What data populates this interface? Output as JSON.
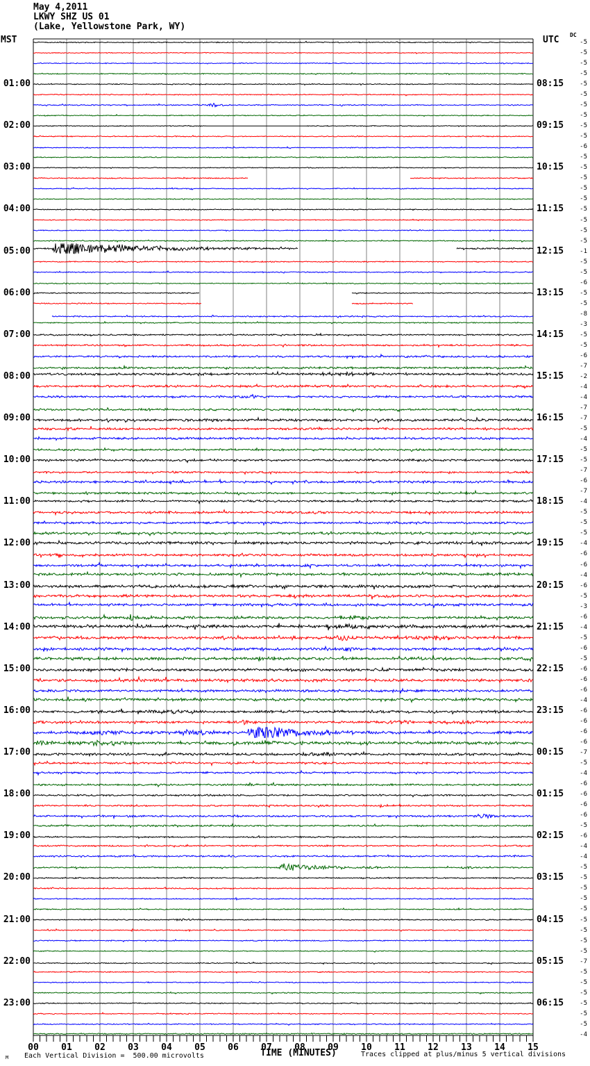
{
  "header": {
    "date": "May 4,2011",
    "station": "LKWY SHZ US 01",
    "location": "(Lake, Yellowstone Park, WY)"
  },
  "plot": {
    "left_tz": "MST",
    "right_tz": "UTC",
    "dc_label": "DC"
  },
  "axis": {
    "title": "TIME (MINUTES)"
  },
  "footer": {
    "left_note": "Each Vertical Division =  500.00 microvolts",
    "right_note": "Traces clipped at plus/minus 5 vertical divisions",
    "watermark": "M"
  },
  "chart_data": {
    "type": "line",
    "subtype": "helicorder-seismogram",
    "title": "LKWY SHZ US 01 webicorder record, May 4,2011 (Lake, Yellowstone Park, WY)",
    "x_axis": {
      "label": "TIME (MINUTES)",
      "min": 0,
      "max": 15,
      "minor_tick": 0.2,
      "tick_labels": [
        "00",
        "01",
        "02",
        "03",
        "04",
        "05",
        "06",
        "07",
        "08",
        "09",
        "10",
        "11",
        "12",
        "13",
        "14",
        "15"
      ]
    },
    "rows_per_hour": 4,
    "row_minutes": 15,
    "num_rows": 96,
    "trace_colors": [
      "#000000",
      "#ff0000",
      "#0000ff",
      "#006600"
    ],
    "grid_color": "#808080",
    "left_hour_labels": [
      "01:00",
      "02:00",
      "03:00",
      "04:00",
      "05:00",
      "06:00",
      "07:00",
      "08:00",
      "09:00",
      "10:00",
      "11:00",
      "12:00",
      "13:00",
      "14:00",
      "15:00",
      "16:00",
      "17:00",
      "18:00",
      "19:00",
      "20:00",
      "21:00",
      "22:00",
      "23:00"
    ],
    "right_utc_labels": [
      "08:15",
      "09:15",
      "10:15",
      "11:15",
      "12:15",
      "13:15",
      "14:15",
      "15:15",
      "16:15",
      "17:15",
      "18:15",
      "19:15",
      "20:15",
      "21:15",
      "22:15",
      "23:15",
      "00:15",
      "01:15",
      "02:15",
      "03:15",
      "04:15",
      "05:15",
      "06:15"
    ],
    "dc_offsets": [
      -5,
      -5,
      -5,
      -5,
      -5,
      -5,
      -5,
      -5,
      -5,
      -5,
      -6,
      -5,
      -5,
      -5,
      -5,
      -5,
      -5,
      -5,
      -5,
      -5,
      -1,
      -5,
      -5,
      -6,
      -5,
      -5,
      -8,
      -3,
      -5,
      -5,
      -6,
      -7,
      -2,
      -4,
      -4,
      -7,
      -7,
      -5,
      -4,
      -5,
      -5,
      -7,
      -6,
      -7,
      -4,
      -5,
      -5,
      -5,
      -4,
      -6,
      -6,
      -4,
      -6,
      -5,
      -3,
      -6,
      -4,
      -5,
      -6,
      -5,
      -6,
      -6,
      -6,
      -4,
      -6,
      -6,
      -6,
      -6,
      -7,
      -5,
      -4,
      -6,
      -6,
      -6,
      -6,
      -5,
      -6,
      -4,
      -4,
      -5,
      -5,
      -5,
      -5,
      -5,
      -5,
      -5,
      -5,
      -5,
      -7,
      -5,
      -5,
      -5,
      -5,
      -5,
      -5,
      -4
    ],
    "noise_levels": [
      0.55,
      0.5,
      0.5,
      0.55,
      0.5,
      0.55,
      0.6,
      0.5,
      0.5,
      0.55,
      0.5,
      0.55,
      0.5,
      0.6,
      0.55,
      0.5,
      0.55,
      0.5,
      0.5,
      0.6,
      0.9,
      0.6,
      0.6,
      0.55,
      0.6,
      0.6,
      0.7,
      0.6,
      0.8,
      0.9,
      1.0,
      1.1,
      1.3,
      1.2,
      1.1,
      1.2,
      1.4,
      1.2,
      1.2,
      1.1,
      1.2,
      1.0,
      1.3,
      1.1,
      1.1,
      1.3,
      1.2,
      1.4,
      1.5,
      1.4,
      1.3,
      1.5,
      1.6,
      1.5,
      1.4,
      1.5,
      1.7,
      1.6,
      1.5,
      1.6,
      1.5,
      1.6,
      1.4,
      1.5,
      1.4,
      1.3,
      1.5,
      1.6,
      1.3,
      1.1,
      1.0,
      1.0,
      0.9,
      0.9,
      1.0,
      0.9,
      0.8,
      0.8,
      0.9,
      0.7,
      0.7,
      0.7,
      0.6,
      0.6,
      0.6,
      0.6,
      0.6,
      0.55,
      0.55,
      0.6,
      0.55,
      0.55,
      0.6,
      0.55,
      0.6,
      0.6
    ],
    "events": [
      {
        "row": 6,
        "t": 5.45,
        "amp": 2.5,
        "w": 0.25
      },
      {
        "row": 20,
        "t": 0.72,
        "amp": 11,
        "w": 0.12,
        "coda": 2.5
      },
      {
        "row": 32,
        "t": 9.3,
        "amp": 2.2,
        "w": 0.9
      },
      {
        "row": 34,
        "t": 6.6,
        "amp": 1.8,
        "w": 0.5
      },
      {
        "row": 55,
        "t": 2.9,
        "amp": 4.5,
        "w": 0.07,
        "coda": 0.4
      },
      {
        "row": 55,
        "t": 9.8,
        "amp": 1.8,
        "w": 0.8
      },
      {
        "row": 56,
        "t": 9.5,
        "amp": 2.2,
        "w": 1.0
      },
      {
        "row": 57,
        "t": 9.3,
        "amp": 3.5,
        "w": 0.3
      },
      {
        "row": 57,
        "t": 12.3,
        "amp": 2.2,
        "w": 0.6
      },
      {
        "row": 58,
        "t": 9.5,
        "amp": 2.6,
        "w": 0.3
      },
      {
        "row": 58,
        "t": 14.1,
        "amp": 2.2,
        "w": 0.4
      },
      {
        "row": 59,
        "t": 6.9,
        "amp": 2.2,
        "w": 0.5
      },
      {
        "row": 64,
        "t": 2.1,
        "amp": 1.8,
        "w": 0.4
      },
      {
        "row": 64,
        "t": 4.0,
        "amp": 2.2,
        "w": 0.5
      },
      {
        "row": 65,
        "t": 6.35,
        "amp": 2.8,
        "w": 0.35
      },
      {
        "row": 65,
        "t": 11.0,
        "amp": 2.2,
        "w": 0.7
      },
      {
        "row": 65,
        "t": 12.9,
        "amp": 2.6,
        "w": 0.5
      },
      {
        "row": 66,
        "t": 2.3,
        "amp": 2.5,
        "w": 1.0
      },
      {
        "row": 66,
        "t": 4.8,
        "amp": 3.2,
        "w": 0.6
      },
      {
        "row": 66,
        "t": 6.62,
        "amp": 13,
        "w": 0.15,
        "coda": 1.2
      },
      {
        "row": 66,
        "t": 8.8,
        "amp": 2.6,
        "w": 0.7
      },
      {
        "row": 67,
        "t": 0.25,
        "amp": 3.5,
        "w": 0.3
      },
      {
        "row": 67,
        "t": 2.0,
        "amp": 2.5,
        "w": 0.9
      },
      {
        "row": 67,
        "t": 7.0,
        "amp": 2.2,
        "w": 0.6
      },
      {
        "row": 68,
        "t": 4.1,
        "amp": 2.2,
        "w": 0.4
      },
      {
        "row": 68,
        "t": 8.8,
        "amp": 2.6,
        "w": 0.7
      },
      {
        "row": 73,
        "t": 10.45,
        "amp": 3.0,
        "w": 0.12
      },
      {
        "row": 74,
        "t": 13.6,
        "amp": 2.6,
        "w": 0.4
      },
      {
        "row": 79,
        "t": 7.5,
        "amp": 5.5,
        "w": 0.1,
        "coda": 1.5
      },
      {
        "row": 79,
        "t": 13.0,
        "amp": 2.2,
        "w": 0.2
      },
      {
        "row": 84,
        "t": 4.6,
        "amp": 1.8,
        "w": 0.3
      }
    ],
    "gaps": [
      {
        "row": 8,
        "t0": 5.2,
        "t1": 8.2,
        "flat": true
      },
      {
        "row": 13,
        "t0": 6.45,
        "t1": 11.3
      },
      {
        "row": 20,
        "t0": 7.95,
        "t1": 12.7
      },
      {
        "row": 24,
        "t0": 5.0,
        "t1": 9.55
      },
      {
        "row": 25,
        "t0": 5.05,
        "t1": 9.55
      },
      {
        "row": 25,
        "t0": 11.4,
        "t1": 15
      },
      {
        "row": 26,
        "t0": 0,
        "t1": 0.55
      }
    ]
  }
}
